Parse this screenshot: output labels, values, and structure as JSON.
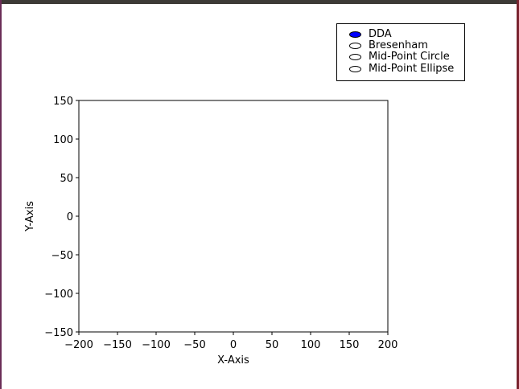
{
  "radio_options": [
    {
      "label": "DDA",
      "selected": true
    },
    {
      "label": "Bresenham",
      "selected": false
    },
    {
      "label": "Mid-Point Circle",
      "selected": false
    },
    {
      "label": "Mid-Point Ellipse",
      "selected": false
    }
  ],
  "colors": {
    "selected_radio": "#0000ff"
  },
  "chart_data": {
    "type": "line",
    "series": [],
    "xlabel": "X-Axis",
    "ylabel": "Y-Axis",
    "xlim": [
      -200,
      200
    ],
    "ylim": [
      -150,
      150
    ],
    "xticks": [
      -200,
      -150,
      -100,
      -50,
      0,
      50,
      100,
      150,
      200
    ],
    "yticks": [
      -150,
      -100,
      -50,
      0,
      50,
      100,
      150
    ],
    "xtick_labels": [
      "−200",
      "−150",
      "−100",
      "−50",
      "0",
      "50",
      "100",
      "150",
      "200"
    ],
    "ytick_labels": [
      "−150",
      "−100",
      "−50",
      "0",
      "50",
      "100",
      "150"
    ],
    "grid": false
  }
}
